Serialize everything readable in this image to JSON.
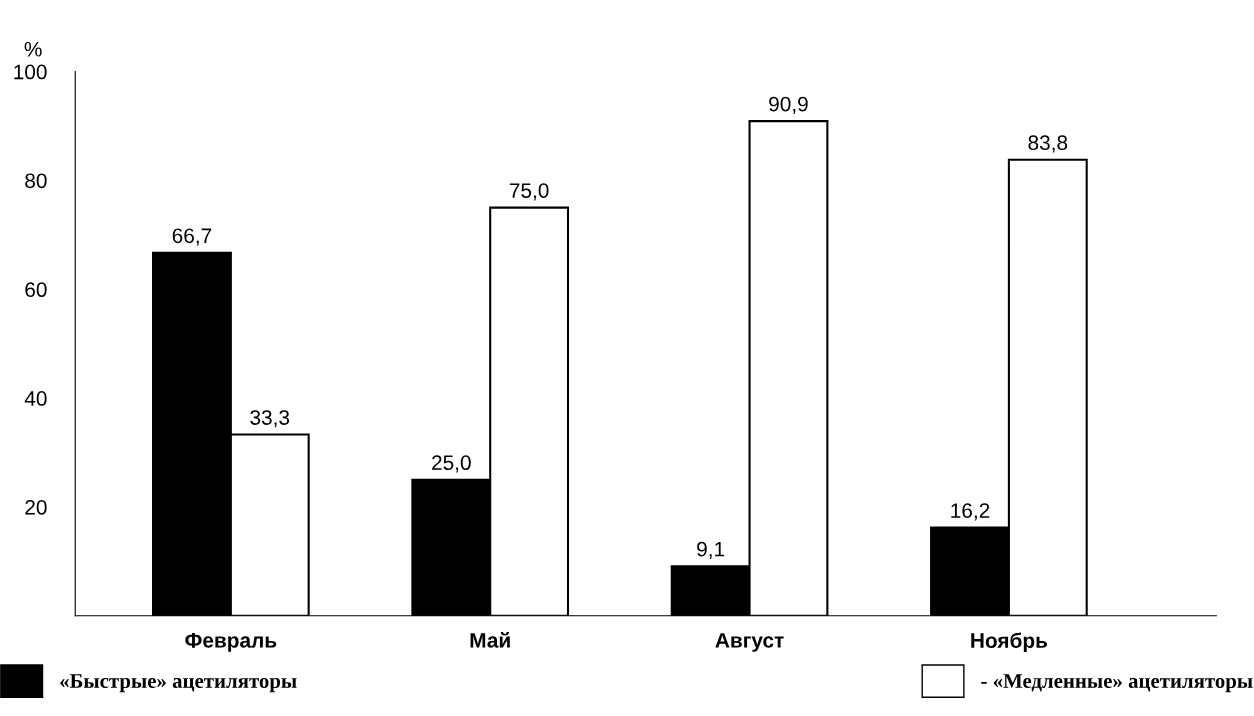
{
  "chart_data": {
    "type": "bar",
    "ylabel": "%",
    "categories": [
      "Февраль",
      "Май",
      "Август",
      "Ноябрь"
    ],
    "series": [
      {
        "name": "«Быстрые» ацетиляторы",
        "color": "#000000",
        "values": [
          66.7,
          25.0,
          9.1,
          16.2
        ],
        "value_labels": [
          "66,7",
          "25,0",
          "9,1",
          "16,2"
        ]
      },
      {
        "name": "- «Медленные» ацетиляторы",
        "color": "#ffffff",
        "values": [
          33.3,
          75.0,
          90.9,
          83.8
        ],
        "value_labels": [
          "33,3",
          "75,0",
          "90,9",
          "83,8"
        ]
      }
    ],
    "ylim": [
      0,
      100
    ],
    "yticks": [
      20,
      40,
      60,
      80,
      100
    ],
    "grid": false,
    "legend": "bottom"
  }
}
